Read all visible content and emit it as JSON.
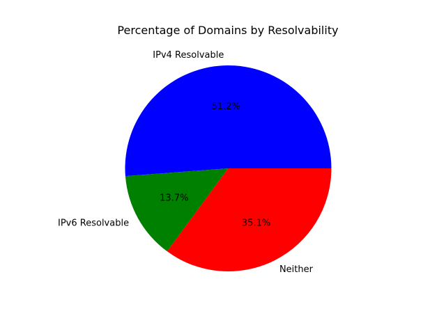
{
  "chart_data": {
    "type": "pie",
    "title": "Percentage of Domains by Resolvability",
    "categories": [
      "IPv4 Resolvable",
      "IPv6 Resolvable",
      "Neither"
    ],
    "values": [
      51.2,
      13.7,
      35.1
    ],
    "percent_labels": [
      "51.2%",
      "13.7%",
      "35.1%"
    ],
    "colors": [
      "#0000ff",
      "#008000",
      "#ff0000"
    ],
    "start_angle_deg": 0,
    "direction": "counterclockwise",
    "legend": "none"
  }
}
